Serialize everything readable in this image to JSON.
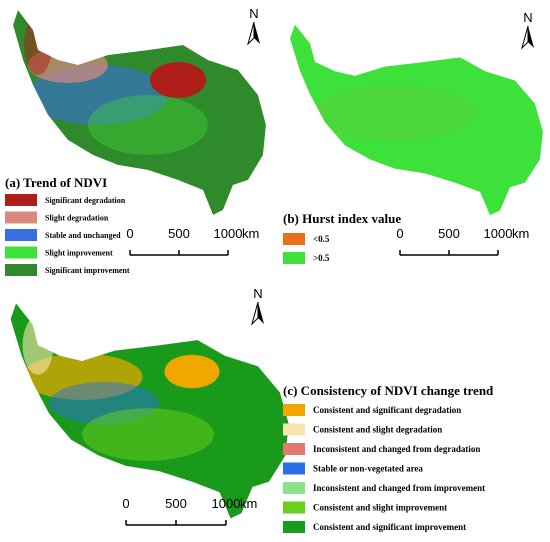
{
  "panels": [
    {
      "title": "(a) Trend of NDVI",
      "north": "N",
      "legend": [
        {
          "label": "Significant degradation",
          "color": "#b01e1a"
        },
        {
          "label": "Slight degradation",
          "color": "#d98a80"
        },
        {
          "label": "Stable and unchanged",
          "color": "#3a6ee0"
        },
        {
          "label": "Slight improvement",
          "color": "#3ee03a"
        },
        {
          "label": "Significant improvement",
          "color": "#2e8a2a"
        }
      ],
      "scale_bar": {
        "ticks": [
          0,
          500,
          1000
        ],
        "unit": "km"
      }
    },
    {
      "title": "(b) Hurst index value",
      "north": "N",
      "legend": [
        {
          "label": "<0.5",
          "color": "#e8701a"
        },
        {
          "label": ">0.5",
          "color": "#3ee03a"
        }
      ],
      "scale_bar": {
        "ticks": [
          0,
          500,
          1000
        ],
        "unit": "km"
      }
    },
    {
      "title": "(c) Consistency of NDVI change trend",
      "north": "N",
      "legend": [
        {
          "label": "Consistent and significant degradation",
          "color": "#f0a800"
        },
        {
          "label": "Consistent and slight degradation",
          "color": "#f8e6b0"
        },
        {
          "label": "Inconsistent and changed from degradation",
          "color": "#e07a70"
        },
        {
          "label": "Stable or non-vegetated area",
          "color": "#2a70e0"
        },
        {
          "label": "Inconsistent and changed from improvement",
          "color": "#8ee08a"
        },
        {
          "label": "Consistent and slight improvement",
          "color": "#6ad020"
        },
        {
          "label": "Consistent and significant improvement",
          "color": "#1a9a1a"
        }
      ],
      "scale_bar": {
        "ticks": [
          0,
          500,
          1000
        ],
        "unit": "km"
      }
    }
  ]
}
